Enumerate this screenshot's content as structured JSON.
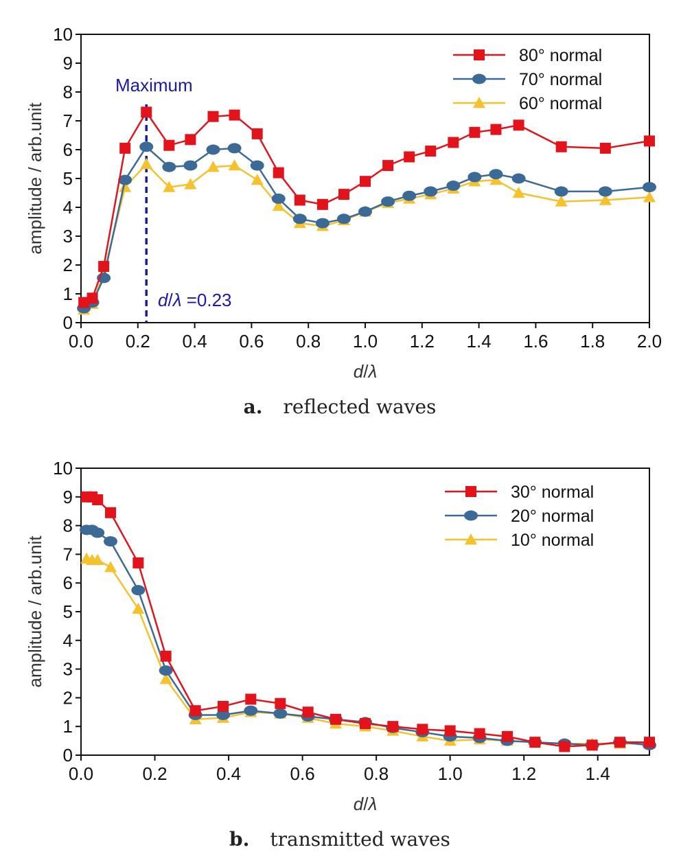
{
  "chart_data": [
    {
      "type": "line",
      "caption_letter": "a.",
      "caption_text": "reflected waves",
      "xlabel": "d/λ",
      "ylabel": "amplitude / arb.unit",
      "xlim": [
        0,
        2.0
      ],
      "ylim": [
        0,
        10
      ],
      "xticks": [
        "0.0",
        "0.2",
        "0.4",
        "0.6",
        "0.8",
        "1.0",
        "1.2",
        "1.4",
        "1.6",
        "1.8",
        "2.0"
      ],
      "yticks": [
        "0",
        "1",
        "2",
        "3",
        "4",
        "5",
        "6",
        "7",
        "8",
        "9",
        "10"
      ],
      "legend_position": "top-right",
      "annotations": {
        "maximum_label": "Maximum",
        "x_label": "d/λ =0.23",
        "x_value": 0.23
      },
      "series": [
        {
          "name": "80° normal",
          "color": "#e3131b",
          "marker": "square",
          "x": [
            0.01,
            0.04,
            0.08,
            0.155,
            0.23,
            0.31,
            0.385,
            0.465,
            0.54,
            0.62,
            0.695,
            0.77,
            0.85,
            0.925,
            1.0,
            1.08,
            1.155,
            1.23,
            1.31,
            1.385,
            1.46,
            1.54,
            1.69,
            1.845,
            2.0
          ],
          "y": [
            0.7,
            0.85,
            1.95,
            6.05,
            7.3,
            6.15,
            6.35,
            7.15,
            7.2,
            6.55,
            5.2,
            4.25,
            4.1,
            4.45,
            4.9,
            5.45,
            5.75,
            5.95,
            6.25,
            6.6,
            6.7,
            6.85,
            6.1,
            6.05,
            6.3
          ]
        },
        {
          "name": "70° normal",
          "color": "#3b6a96",
          "marker": "circle",
          "x": [
            0.01,
            0.04,
            0.08,
            0.155,
            0.23,
            0.31,
            0.385,
            0.465,
            0.54,
            0.62,
            0.695,
            0.77,
            0.85,
            0.925,
            1.0,
            1.08,
            1.155,
            1.23,
            1.31,
            1.385,
            1.46,
            1.54,
            1.69,
            1.845,
            2.0
          ],
          "y": [
            0.5,
            0.7,
            1.55,
            4.95,
            6.1,
            5.4,
            5.45,
            6.0,
            6.05,
            5.45,
            4.3,
            3.6,
            3.45,
            3.6,
            3.85,
            4.2,
            4.4,
            4.55,
            4.75,
            5.05,
            5.15,
            5.0,
            4.55,
            4.55,
            4.7
          ]
        },
        {
          "name": "60° normal",
          "color": "#f5c12c",
          "marker": "triangle",
          "x": [
            0.01,
            0.04,
            0.08,
            0.155,
            0.23,
            0.31,
            0.385,
            0.465,
            0.54,
            0.62,
            0.695,
            0.77,
            0.85,
            0.925,
            1.0,
            1.08,
            1.155,
            1.23,
            1.31,
            1.385,
            1.46,
            1.54,
            1.69,
            1.845,
            2.0
          ],
          "y": [
            0.45,
            0.65,
            1.7,
            4.7,
            5.5,
            4.7,
            4.8,
            5.4,
            5.45,
            4.95,
            4.05,
            3.45,
            3.35,
            3.55,
            3.85,
            4.15,
            4.3,
            4.45,
            4.65,
            4.9,
            4.95,
            4.5,
            4.2,
            4.25,
            4.35
          ]
        }
      ]
    },
    {
      "type": "line",
      "caption_letter": "b.",
      "caption_text": "transmitted waves",
      "xlabel": "d/λ",
      "ylabel": "amplitude / arb.unit",
      "xlim": [
        0,
        1.54
      ],
      "ylim": [
        0,
        10
      ],
      "xticks": [
        "0.0",
        "0.2",
        "0.4",
        "0.6",
        "0.8",
        "1.0",
        "1.2",
        "1.4"
      ],
      "yticks": [
        "0",
        "1",
        "2",
        "3",
        "4",
        "5",
        "6",
        "7",
        "8",
        "9",
        "10"
      ],
      "legend_position": "top-right",
      "series": [
        {
          "name": "30° normal",
          "color": "#e3131b",
          "marker": "square",
          "x": [
            0.015,
            0.03,
            0.045,
            0.08,
            0.155,
            0.23,
            0.31,
            0.385,
            0.46,
            0.54,
            0.615,
            0.69,
            0.77,
            0.845,
            0.925,
            1.0,
            1.08,
            1.155,
            1.23,
            1.31,
            1.385,
            1.46,
            1.54
          ],
          "y": [
            9.0,
            9.0,
            8.9,
            8.45,
            6.7,
            3.45,
            1.55,
            1.7,
            1.95,
            1.8,
            1.5,
            1.25,
            1.1,
            1.0,
            0.9,
            0.85,
            0.75,
            0.65,
            0.45,
            0.3,
            0.35,
            0.45,
            0.45
          ]
        },
        {
          "name": "20° normal",
          "color": "#3b6a96",
          "marker": "circle",
          "x": [
            0.015,
            0.03,
            0.045,
            0.08,
            0.155,
            0.23,
            0.31,
            0.385,
            0.46,
            0.54,
            0.615,
            0.69,
            0.77,
            0.845,
            0.925,
            1.0,
            1.08,
            1.155,
            1.23,
            1.31,
            1.385,
            1.46,
            1.54
          ],
          "y": [
            7.85,
            7.85,
            7.75,
            7.45,
            5.75,
            2.95,
            1.4,
            1.4,
            1.55,
            1.45,
            1.35,
            1.25,
            1.15,
            0.95,
            0.8,
            0.65,
            0.6,
            0.5,
            0.45,
            0.4,
            0.35,
            0.45,
            0.35
          ]
        },
        {
          "name": "10° normal",
          "color": "#f5c12c",
          "marker": "triangle",
          "x": [
            0.015,
            0.03,
            0.045,
            0.08,
            0.155,
            0.23,
            0.31,
            0.385,
            0.46,
            0.54,
            0.615,
            0.69,
            0.77,
            0.845,
            0.925,
            1.0,
            1.08,
            1.155,
            1.23,
            1.31,
            1.385,
            1.46,
            1.54
          ],
          "y": [
            6.85,
            6.8,
            6.8,
            6.55,
            5.1,
            2.65,
            1.25,
            1.3,
            1.5,
            1.45,
            1.3,
            1.1,
            1.0,
            0.85,
            0.65,
            0.5,
            0.55,
            0.5,
            0.45,
            0.4,
            0.4,
            0.4,
            0.4
          ]
        }
      ]
    }
  ]
}
